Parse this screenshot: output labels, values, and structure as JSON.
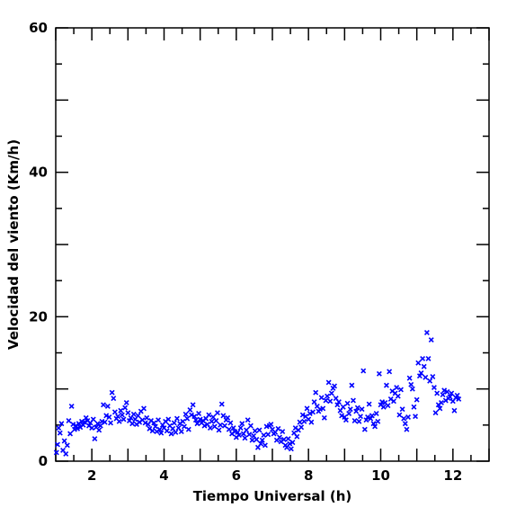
{
  "chart_data": {
    "type": "scatter",
    "title": "",
    "xlabel": "Tiempo Universal (h)",
    "ylabel": "Velocidad del viento (Km/h)",
    "xlim": [
      1,
      13
    ],
    "ylim": [
      0,
      60
    ],
    "x_ticks": [
      2,
      4,
      6,
      8,
      10,
      12
    ],
    "x_tick_labels": [
      "2",
      "4",
      "6",
      "8",
      "10",
      "12"
    ],
    "y_ticks": [
      0,
      20,
      40,
      60
    ],
    "y_tick_labels": [
      "0",
      "20",
      "40",
      "60"
    ],
    "marker": "x",
    "marker_color": "#0000ff",
    "grid": false,
    "series": [
      {
        "points": [
          [
            1.02,
            1.2
          ],
          [
            1.05,
            2.3
          ],
          [
            1.08,
            4.6
          ],
          [
            1.12,
            3.9
          ],
          [
            1.16,
            5.2
          ],
          [
            1.2,
            1.5
          ],
          [
            1.24,
            2.8
          ],
          [
            1.28,
            1.0
          ],
          [
            1.32,
            2.2
          ],
          [
            1.36,
            5.6
          ],
          [
            1.4,
            3.8
          ],
          [
            1.44,
            7.6
          ],
          [
            1.48,
            5.1
          ],
          [
            1.52,
            4.4
          ],
          [
            1.56,
            4.9
          ],
          [
            1.6,
            4.5
          ],
          [
            1.64,
            5.2
          ],
          [
            1.68,
            4.7
          ],
          [
            1.72,
            5.5
          ],
          [
            1.76,
            5.0
          ],
          [
            1.8,
            5.4
          ],
          [
            1.84,
            6.0
          ],
          [
            1.88,
            5.6
          ],
          [
            1.92,
            4.9
          ],
          [
            1.96,
            5.3
          ],
          [
            2.0,
            4.6
          ],
          [
            2.04,
            5.8
          ],
          [
            2.08,
            3.1
          ],
          [
            2.12,
            4.7
          ],
          [
            2.16,
            5.2
          ],
          [
            2.2,
            4.3
          ],
          [
            2.24,
            4.9
          ],
          [
            2.28,
            5.5
          ],
          [
            2.32,
            7.8
          ],
          [
            2.36,
            5.4
          ],
          [
            2.4,
            6.3
          ],
          [
            2.44,
            7.6
          ],
          [
            2.48,
            6.1
          ],
          [
            2.52,
            5.3
          ],
          [
            2.56,
            9.5
          ],
          [
            2.6,
            8.7
          ],
          [
            2.64,
            6.8
          ],
          [
            2.68,
            5.9
          ],
          [
            2.72,
            6.2
          ],
          [
            2.76,
            5.5
          ],
          [
            2.8,
            7.0
          ],
          [
            2.84,
            6.4
          ],
          [
            2.88,
            5.8
          ],
          [
            2.92,
            7.4
          ],
          [
            2.96,
            8.1
          ],
          [
            3.0,
            6.7
          ],
          [
            3.04,
            5.6
          ],
          [
            3.08,
            6.0
          ],
          [
            3.12,
            5.2
          ],
          [
            3.16,
            6.5
          ],
          [
            3.2,
            5.8
          ],
          [
            3.24,
            5.1
          ],
          [
            3.28,
            6.3
          ],
          [
            3.32,
            5.4
          ],
          [
            3.36,
            6.9
          ],
          [
            3.4,
            5.7
          ],
          [
            3.44,
            7.3
          ],
          [
            3.48,
            5.3
          ],
          [
            3.52,
            6.0
          ],
          [
            3.56,
            5.1
          ],
          [
            3.6,
            4.5
          ],
          [
            3.64,
            5.6
          ],
          [
            3.68,
            4.2
          ],
          [
            3.72,
            5.3
          ],
          [
            3.76,
            4.8
          ],
          [
            3.8,
            4.1
          ],
          [
            3.84,
            5.7
          ],
          [
            3.88,
            4.4
          ],
          [
            3.92,
            3.9
          ],
          [
            3.96,
            5.0
          ],
          [
            4.0,
            4.6
          ],
          [
            4.04,
            5.5
          ],
          [
            4.08,
            4.2
          ],
          [
            4.12,
            5.8
          ],
          [
            4.16,
            4.9
          ],
          [
            4.2,
            3.8
          ],
          [
            4.24,
            4.5
          ],
          [
            4.28,
            5.3
          ],
          [
            4.32,
            4.0
          ],
          [
            4.36,
            5.9
          ],
          [
            4.4,
            4.6
          ],
          [
            4.44,
            5.2
          ],
          [
            4.48,
            4.1
          ],
          [
            4.52,
            5.5
          ],
          [
            4.56,
            4.8
          ],
          [
            4.6,
            6.5
          ],
          [
            4.64,
            5.9
          ],
          [
            4.68,
            4.4
          ],
          [
            4.72,
            7.1
          ],
          [
            4.76,
            6.4
          ],
          [
            4.8,
            7.8
          ],
          [
            4.84,
            6.2
          ],
          [
            4.88,
            5.7
          ],
          [
            4.92,
            5.2
          ],
          [
            4.96,
            6.6
          ],
          [
            5.0,
            5.8
          ],
          [
            5.04,
            5.3
          ],
          [
            5.08,
            5.6
          ],
          [
            5.12,
            4.9
          ],
          [
            5.16,
            5.9
          ],
          [
            5.2,
            5.1
          ],
          [
            5.24,
            6.4
          ],
          [
            5.28,
            4.6
          ],
          [
            5.32,
            5.5
          ],
          [
            5.36,
            6.1
          ],
          [
            5.4,
            4.8
          ],
          [
            5.44,
            5.6
          ],
          [
            5.48,
            6.7
          ],
          [
            5.52,
            4.3
          ],
          [
            5.56,
            5.0
          ],
          [
            5.6,
            7.9
          ],
          [
            5.64,
            6.3
          ],
          [
            5.68,
            4.9
          ],
          [
            5.72,
            5.7
          ],
          [
            5.76,
            6.0
          ],
          [
            5.8,
            4.4
          ],
          [
            5.84,
            5.3
          ],
          [
            5.88,
            3.8
          ],
          [
            5.92,
            4.6
          ],
          [
            5.96,
            4.1
          ],
          [
            6.0,
            3.3
          ],
          [
            6.04,
            4.0
          ],
          [
            6.08,
            3.6
          ],
          [
            6.12,
            4.6
          ],
          [
            6.16,
            5.2
          ],
          [
            6.2,
            3.8
          ],
          [
            6.24,
            3.2
          ],
          [
            6.28,
            4.3
          ],
          [
            6.32,
            5.7
          ],
          [
            6.36,
            3.7
          ],
          [
            6.4,
            4.9
          ],
          [
            6.44,
            2.9
          ],
          [
            6.48,
            3.5
          ],
          [
            6.52,
            4.2
          ],
          [
            6.56,
            3.0
          ],
          [
            6.6,
            1.9
          ],
          [
            6.64,
            4.3
          ],
          [
            6.68,
            2.4
          ],
          [
            6.72,
            2.9
          ],
          [
            6.76,
            3.6
          ],
          [
            6.8,
            2.2
          ],
          [
            6.84,
            4.8
          ],
          [
            6.88,
            3.7
          ],
          [
            6.92,
            4.9
          ],
          [
            6.96,
            5.1
          ],
          [
            7.0,
            4.4
          ],
          [
            7.04,
            3.8
          ],
          [
            7.08,
            4.0
          ],
          [
            7.12,
            2.9
          ],
          [
            7.16,
            4.5
          ],
          [
            7.2,
            3.3
          ],
          [
            7.24,
            2.7
          ],
          [
            7.28,
            4.1
          ],
          [
            7.32,
            3.0
          ],
          [
            7.36,
            2.2
          ],
          [
            7.4,
            1.9
          ],
          [
            7.44,
            3.1
          ],
          [
            7.48,
            2.4
          ],
          [
            7.52,
            1.7
          ],
          [
            7.56,
            2.6
          ],
          [
            7.6,
            3.9
          ],
          [
            7.64,
            4.6
          ],
          [
            7.68,
            3.4
          ],
          [
            7.72,
            4.3
          ],
          [
            7.76,
            5.4
          ],
          [
            7.8,
            4.7
          ],
          [
            7.84,
            6.4
          ],
          [
            7.88,
            5.5
          ],
          [
            7.92,
            6.2
          ],
          [
            7.96,
            7.3
          ],
          [
            8.0,
            5.8
          ],
          [
            8.04,
            6.6
          ],
          [
            8.08,
            5.4
          ],
          [
            8.12,
            6.8
          ],
          [
            8.16,
            8.2
          ],
          [
            8.2,
            9.5
          ],
          [
            8.24,
            7.6
          ],
          [
            8.28,
            6.9
          ],
          [
            8.32,
            7.2
          ],
          [
            8.36,
            8.8
          ],
          [
            8.4,
            7.3
          ],
          [
            8.44,
            6.0
          ],
          [
            8.48,
            8.4
          ],
          [
            8.52,
            9.0
          ],
          [
            8.56,
            10.9
          ],
          [
            8.6,
            8.3
          ],
          [
            8.64,
            9.4
          ],
          [
            8.68,
            10.1
          ],
          [
            8.72,
            10.4
          ],
          [
            8.76,
            8.7
          ],
          [
            8.8,
            7.8
          ],
          [
            8.84,
            8.2
          ],
          [
            8.88,
            7.0
          ],
          [
            8.92,
            6.3
          ],
          [
            8.96,
            7.5
          ],
          [
            9.0,
            6.1
          ],
          [
            9.04,
            5.7
          ],
          [
            9.08,
            8.0
          ],
          [
            9.12,
            6.6
          ],
          [
            9.16,
            7.2
          ],
          [
            9.2,
            10.5
          ],
          [
            9.24,
            8.4
          ],
          [
            9.28,
            5.6
          ],
          [
            9.32,
            6.9
          ],
          [
            9.36,
            7.4
          ],
          [
            9.4,
            5.5
          ],
          [
            9.44,
            6.2
          ],
          [
            9.48,
            7.2
          ],
          [
            9.52,
            12.5
          ],
          [
            9.56,
            4.4
          ],
          [
            9.6,
            5.7
          ],
          [
            9.64,
            6.1
          ],
          [
            9.68,
            7.9
          ],
          [
            9.72,
            5.9
          ],
          [
            9.76,
            6.3
          ],
          [
            9.8,
            5.2
          ],
          [
            9.84,
            4.8
          ],
          [
            9.88,
            6.6
          ],
          [
            9.92,
            5.5
          ],
          [
            9.96,
            12.1
          ],
          [
            10.0,
            7.8
          ],
          [
            10.04,
            8.2
          ],
          [
            10.08,
            7.5
          ],
          [
            10.12,
            8.1
          ],
          [
            10.16,
            10.5
          ],
          [
            10.2,
            7.7
          ],
          [
            10.24,
            12.4
          ],
          [
            10.28,
            8.6
          ],
          [
            10.32,
            9.7
          ],
          [
            10.36,
            8.3
          ],
          [
            10.4,
            9.4
          ],
          [
            10.44,
            10.2
          ],
          [
            10.48,
            9.0
          ],
          [
            10.52,
            6.4
          ],
          [
            10.56,
            9.9
          ],
          [
            10.6,
            7.2
          ],
          [
            10.64,
            5.9
          ],
          [
            10.68,
            5.2
          ],
          [
            10.72,
            4.4
          ],
          [
            10.76,
            6.1
          ],
          [
            10.8,
            11.5
          ],
          [
            10.84,
            10.6
          ],
          [
            10.88,
            10.0
          ],
          [
            10.92,
            7.5
          ],
          [
            10.96,
            6.2
          ],
          [
            11.0,
            8.5
          ],
          [
            11.04,
            13.6
          ],
          [
            11.08,
            11.8
          ],
          [
            11.12,
            12.2
          ],
          [
            11.16,
            14.2
          ],
          [
            11.2,
            13.1
          ],
          [
            11.24,
            11.6
          ],
          [
            11.28,
            17.8
          ],
          [
            11.32,
            14.2
          ],
          [
            11.36,
            11.1
          ],
          [
            11.4,
            16.8
          ],
          [
            11.44,
            11.7
          ],
          [
            11.48,
            10.2
          ],
          [
            11.52,
            6.7
          ],
          [
            11.56,
            9.4
          ],
          [
            11.6,
            7.8
          ],
          [
            11.64,
            7.3
          ],
          [
            11.68,
            8.1
          ],
          [
            11.72,
            9.2
          ],
          [
            11.76,
            9.8
          ],
          [
            11.8,
            8.4
          ],
          [
            11.84,
            9.6
          ],
          [
            11.88,
            8.7
          ],
          [
            11.92,
            8.9
          ],
          [
            11.96,
            9.4
          ],
          [
            12.0,
            8.3
          ],
          [
            12.04,
            7.0
          ],
          [
            12.08,
            8.8
          ],
          [
            12.12,
            9.1
          ],
          [
            12.16,
            8.6
          ]
        ]
      }
    ]
  }
}
